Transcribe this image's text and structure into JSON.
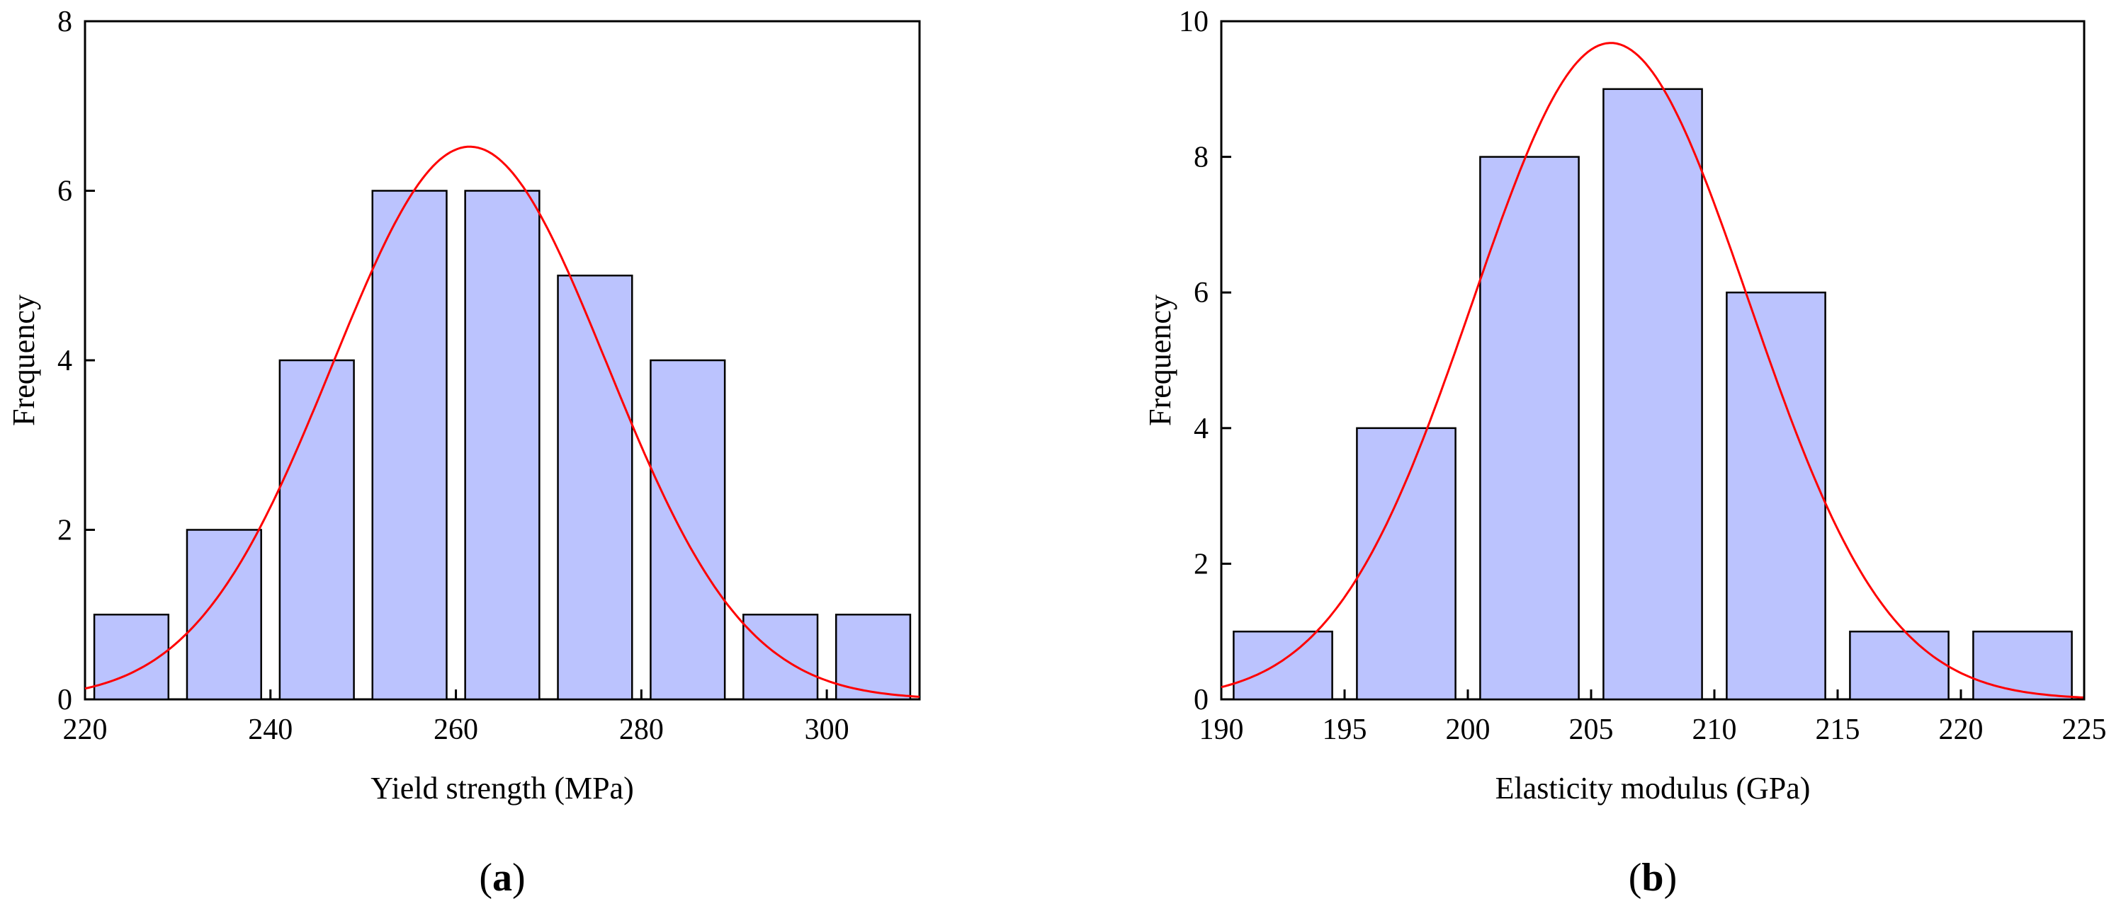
{
  "chart_data": [
    {
      "type": "bar",
      "panel_label": "(a)",
      "panel_letter": "a",
      "title": "",
      "xlabel": "Yield strength (MPa)",
      "ylabel": "Frequency",
      "xlim": [
        220,
        310
      ],
      "ylim": [
        0,
        8
      ],
      "xticks": [
        220,
        240,
        260,
        280,
        300
      ],
      "yticks": [
        0,
        2,
        4,
        6,
        8
      ],
      "bins": [
        {
          "start": 221,
          "end": 229,
          "value": 1
        },
        {
          "start": 231,
          "end": 239,
          "value": 2
        },
        {
          "start": 241,
          "end": 249,
          "value": 4
        },
        {
          "start": 251,
          "end": 259,
          "value": 6
        },
        {
          "start": 261,
          "end": 269,
          "value": 6
        },
        {
          "start": 271,
          "end": 279,
          "value": 5
        },
        {
          "start": 281,
          "end": 289,
          "value": 4
        },
        {
          "start": 291,
          "end": 299,
          "value": 1
        },
        {
          "start": 301,
          "end": 309,
          "value": 1
        }
      ],
      "fit_curve": {
        "type": "normal",
        "mean": 261.5,
        "sd": 14.8,
        "peak": 6.52
      }
    },
    {
      "type": "bar",
      "panel_label": "(b)",
      "panel_letter": "b",
      "title": "",
      "xlabel": "Elasticity modulus (GPa)",
      "ylabel": "Frequency",
      "xlim": [
        190,
        225
      ],
      "ylim": [
        0,
        10
      ],
      "xticks": [
        190,
        195,
        200,
        205,
        210,
        215,
        220,
        225
      ],
      "yticks": [
        0,
        2,
        4,
        6,
        8,
        10
      ],
      "bins": [
        {
          "start": 190.5,
          "end": 194.5,
          "value": 1
        },
        {
          "start": 195.5,
          "end": 199.5,
          "value": 4
        },
        {
          "start": 200.5,
          "end": 204.5,
          "value": 8
        },
        {
          "start": 205.5,
          "end": 209.5,
          "value": 9
        },
        {
          "start": 210.5,
          "end": 214.5,
          "value": 6
        },
        {
          "start": 215.5,
          "end": 219.5,
          "value": 1
        },
        {
          "start": 220.5,
          "end": 224.5,
          "value": 1
        }
      ],
      "fit_curve": {
        "type": "normal",
        "mean": 205.8,
        "sd": 5.6,
        "peak": 9.68
      }
    }
  ],
  "colors": {
    "bar_fill": "#BBC3FE",
    "bar_stroke": "#000000",
    "curve": "#FF0000",
    "axis": "#000000"
  }
}
